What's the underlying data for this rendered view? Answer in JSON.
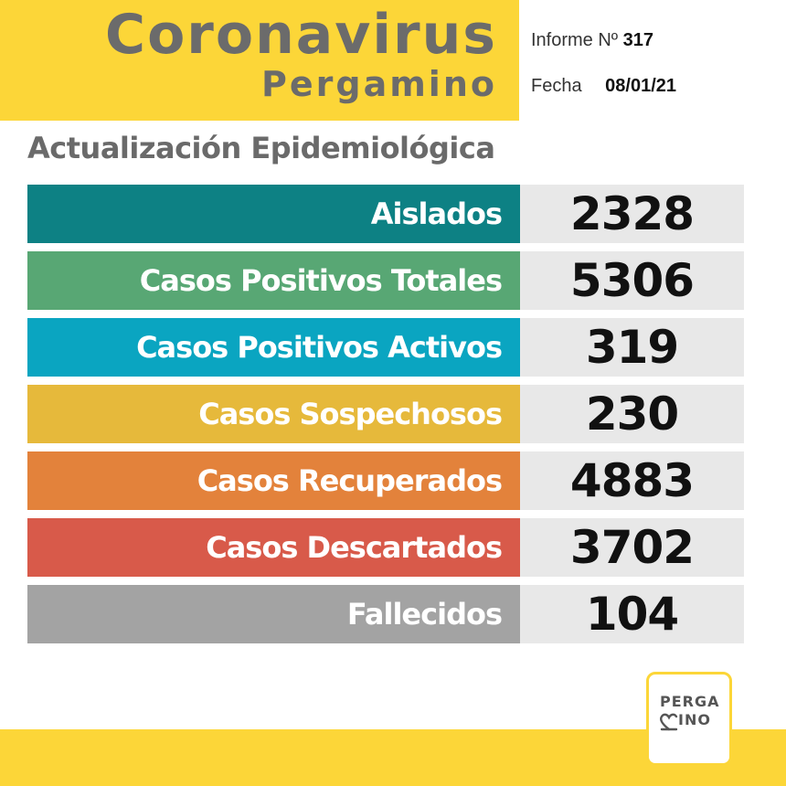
{
  "header": {
    "title": "Coronavirus",
    "city": "Pergamino",
    "report_label": "Informe Nº",
    "report_number": "317",
    "date_label": "Fecha",
    "date_value": "08/01/21"
  },
  "subtitle": "Actualización Epidemiológica",
  "stats": [
    {
      "label": "Aislados",
      "value": "2328",
      "color": "#0d8184"
    },
    {
      "label": "Casos Positivos Totales",
      "value": "5306",
      "color": "#58a774"
    },
    {
      "label": "Casos Positivos Activos",
      "value": "319",
      "color": "#0aa5c1"
    },
    {
      "label": "Casos Sospechosos",
      "value": "230",
      "color": "#e6b93b"
    },
    {
      "label": "Casos Recuperados",
      "value": "4883",
      "color": "#e3823b"
    },
    {
      "label": "Casos Descartados",
      "value": "3702",
      "color": "#d85a4a"
    },
    {
      "label": "Fallecidos",
      "value": "104",
      "color": "#a3a3a3"
    }
  ],
  "logo": {
    "line1": "PERGA",
    "line2": "INO"
  }
}
